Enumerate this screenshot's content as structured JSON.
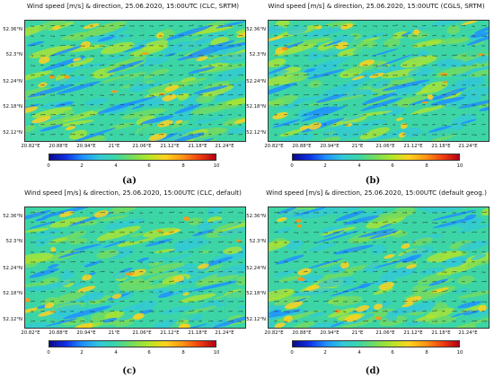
{
  "colorbar": {
    "min": 0,
    "max": 10,
    "ticks": [
      "0",
      "2",
      "4",
      "6",
      "8",
      "10"
    ],
    "colors": [
      "#0a0a8c",
      "#1030e6",
      "#1e90ff",
      "#32c8d8",
      "#3cd6a6",
      "#78dc5a",
      "#b4e628",
      "#ffd21e",
      "#ff9614",
      "#f04010",
      "#b40014"
    ]
  },
  "axes": {
    "lat_labels": [
      "52.36°N",
      "52.3°N",
      "52.24°N",
      "52.18°N",
      "52.12°N"
    ],
    "lon_labels": [
      "20.82°E",
      "20.88°E",
      "20.94°E",
      "21°E",
      "21.06°E",
      "21.12°E",
      "21.18°E",
      "21.24°E"
    ]
  },
  "panels": [
    {
      "id": "a",
      "title": "Wind speed [m/s] & direction, 25.06.2020, 15:00UTC (CLC, SRTM)",
      "label": "(a)"
    },
    {
      "id": "b",
      "title": "Wind speed [m/s] & direction, 25.06.2020, 15:00UTC (CGLS, SRTM)",
      "label": "(b)"
    },
    {
      "id": "c",
      "title": "Wind speed [m/s] & direction, 25.06.2020, 15:00UTC (CLC, default)",
      "label": "(c)"
    },
    {
      "id": "d",
      "title": "Wind speed [m/s] & direction, 25.06.2020, 15:00UTC (default geog.)",
      "label": "(d)"
    }
  ]
}
